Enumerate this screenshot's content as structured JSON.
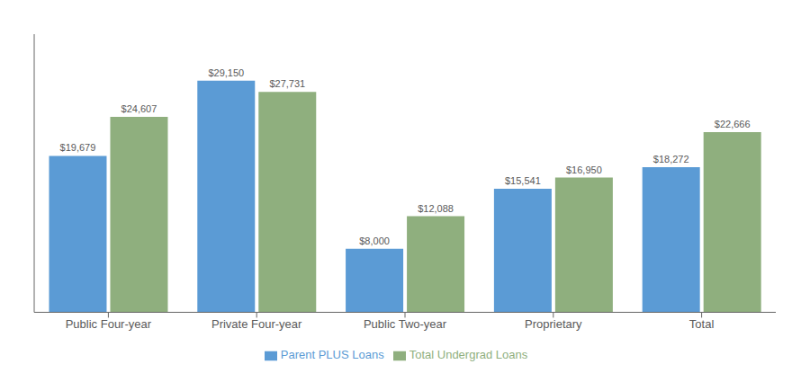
{
  "chart_data": {
    "type": "bar",
    "categories": [
      "Public Four-year",
      "Private Four-year",
      "Public Two-year",
      "Proprietary",
      "Total"
    ],
    "series": [
      {
        "name": "Parent PLUS Loans",
        "color": "#5B9BD5",
        "values": [
          19679,
          29150,
          8000,
          15541,
          18272
        ],
        "value_labels": [
          "$19,679",
          "$29,150",
          "$8,000",
          "$15,541",
          "$18,272"
        ]
      },
      {
        "name": "Total Undergrad Loans",
        "color": "#8FAF7E",
        "values": [
          24607,
          27731,
          12088,
          16950,
          22666
        ],
        "value_labels": [
          "$24,607",
          "$27,731",
          "$12,088",
          "$16,950",
          "$22,666"
        ]
      }
    ],
    "ylim": [
      0,
      35000
    ],
    "grid": false,
    "legend": "bottom",
    "data_labels": true,
    "tick_labels": "x"
  }
}
